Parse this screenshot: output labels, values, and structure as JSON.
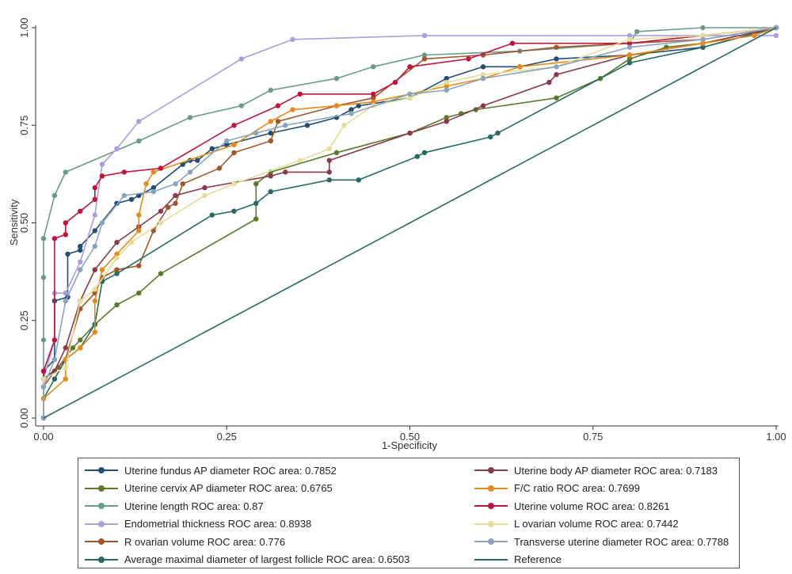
{
  "chart_data": {
    "type": "line",
    "title": "",
    "xlabel": "1-Specificity",
    "ylabel": "Sensitivity",
    "xlim": [
      0,
      1
    ],
    "ylim": [
      0,
      1
    ],
    "xticks": [
      "0.00",
      "0.25",
      "0.50",
      "0.75",
      "1.00"
    ],
    "yticks": [
      "0.00",
      "0.25",
      "0.50",
      "0.75",
      "1.00"
    ],
    "grid": false,
    "legend_position": "bottom",
    "series": [
      {
        "name": "Uterine fundus AP diameter ROC area: 0.7852",
        "color": "#1f4e79",
        "points": [
          [
            0,
            0
          ],
          [
            0,
            0.12
          ],
          [
            0.015,
            0.15
          ],
          [
            0.015,
            0.3
          ],
          [
            0.033,
            0.31
          ],
          [
            0.033,
            0.42
          ],
          [
            0.05,
            0.43
          ],
          [
            0.05,
            0.44
          ],
          [
            0.07,
            0.48
          ],
          [
            0.1,
            0.55
          ],
          [
            0.12,
            0.56
          ],
          [
            0.13,
            0.57
          ],
          [
            0.15,
            0.59
          ],
          [
            0.19,
            0.65
          ],
          [
            0.2,
            0.66
          ],
          [
            0.21,
            0.66
          ],
          [
            0.23,
            0.69
          ],
          [
            0.25,
            0.7
          ],
          [
            0.31,
            0.73
          ],
          [
            0.36,
            0.75
          ],
          [
            0.4,
            0.77
          ],
          [
            0.42,
            0.79
          ],
          [
            0.43,
            0.8
          ],
          [
            0.5,
            0.82
          ],
          [
            0.55,
            0.87
          ],
          [
            0.6,
            0.9
          ],
          [
            0.65,
            0.9
          ],
          [
            0.7,
            0.92
          ],
          [
            0.8,
            0.93
          ],
          [
            0.9,
            0.95
          ],
          [
            1,
            1
          ]
        ]
      },
      {
        "name": "Uterine cervix AP diameter ROC area: 0.6765",
        "color": "#5a7a2a",
        "points": [
          [
            0,
            0
          ],
          [
            0,
            0.1
          ],
          [
            0.02,
            0.13
          ],
          [
            0.04,
            0.18
          ],
          [
            0.05,
            0.2
          ],
          [
            0.07,
            0.24
          ],
          [
            0.1,
            0.29
          ],
          [
            0.13,
            0.32
          ],
          [
            0.16,
            0.37
          ],
          [
            0.29,
            0.51
          ],
          [
            0.29,
            0.6
          ],
          [
            0.31,
            0.63
          ],
          [
            0.4,
            0.68
          ],
          [
            0.5,
            0.73
          ],
          [
            0.55,
            0.77
          ],
          [
            0.57,
            0.78
          ],
          [
            0.59,
            0.79
          ],
          [
            0.7,
            0.82
          ],
          [
            0.76,
            0.87
          ],
          [
            0.8,
            0.92
          ],
          [
            0.85,
            0.95
          ],
          [
            0.9,
            0.96
          ],
          [
            1,
            1
          ]
        ]
      },
      {
        "name": "Uterine length ROC area: 0.87",
        "color": "#6a9a8a",
        "points": [
          [
            0,
            0
          ],
          [
            0,
            0.2
          ],
          [
            0,
            0.36
          ],
          [
            0,
            0.46
          ],
          [
            0.015,
            0.57
          ],
          [
            0.03,
            0.63
          ],
          [
            0.13,
            0.71
          ],
          [
            0.2,
            0.77
          ],
          [
            0.27,
            0.8
          ],
          [
            0.31,
            0.84
          ],
          [
            0.4,
            0.87
          ],
          [
            0.45,
            0.9
          ],
          [
            0.52,
            0.93
          ],
          [
            0.65,
            0.94
          ],
          [
            0.8,
            0.96
          ],
          [
            0.81,
            0.99
          ],
          [
            0.9,
            1
          ],
          [
            1,
            1
          ]
        ]
      },
      {
        "name": "Endometrial thickness ROC area: 0.8938",
        "color": "#a89ee0",
        "points": [
          [
            0,
            0
          ],
          [
            0,
            0.1
          ],
          [
            0.015,
            0.2
          ],
          [
            0.015,
            0.32
          ],
          [
            0.03,
            0.32
          ],
          [
            0.05,
            0.4
          ],
          [
            0.07,
            0.52
          ],
          [
            0.08,
            0.65
          ],
          [
            0.1,
            0.69
          ],
          [
            0.13,
            0.76
          ],
          [
            0.27,
            0.92
          ],
          [
            0.34,
            0.97
          ],
          [
            0.52,
            0.98
          ],
          [
            0.8,
            0.98
          ],
          [
            1,
            0.98
          ]
        ]
      },
      {
        "name": "R ovarian volume ROC area: 0.776",
        "color": "#a3552a",
        "points": [
          [
            0,
            0
          ],
          [
            0,
            0.08
          ],
          [
            0.015,
            0.12
          ],
          [
            0.03,
            0.15
          ],
          [
            0.05,
            0.28
          ],
          [
            0.07,
            0.32
          ],
          [
            0.08,
            0.36
          ],
          [
            0.1,
            0.38
          ],
          [
            0.13,
            0.39
          ],
          [
            0.15,
            0.48
          ],
          [
            0.17,
            0.54
          ],
          [
            0.18,
            0.55
          ],
          [
            0.19,
            0.6
          ],
          [
            0.24,
            0.64
          ],
          [
            0.26,
            0.68
          ],
          [
            0.31,
            0.71
          ],
          [
            0.32,
            0.76
          ],
          [
            0.4,
            0.8
          ],
          [
            0.45,
            0.82
          ],
          [
            0.52,
            0.92
          ],
          [
            0.6,
            0.93
          ],
          [
            0.7,
            0.95
          ],
          [
            0.8,
            0.96
          ],
          [
            0.9,
            0.97
          ],
          [
            1,
            1
          ]
        ]
      },
      {
        "name": "Average maximal diameter of largest follicle ROC area: 0.6503",
        "color": "#236b63",
        "points": [
          [
            0,
            0
          ],
          [
            0,
            0.05
          ],
          [
            0.015,
            0.1
          ],
          [
            0.03,
            0.15
          ],
          [
            0.05,
            0.18
          ],
          [
            0.07,
            0.24
          ],
          [
            0.08,
            0.35
          ],
          [
            0.1,
            0.37
          ],
          [
            0.23,
            0.52
          ],
          [
            0.26,
            0.53
          ],
          [
            0.29,
            0.55
          ],
          [
            0.31,
            0.58
          ],
          [
            0.39,
            0.61
          ],
          [
            0.43,
            0.61
          ],
          [
            0.51,
            0.67
          ],
          [
            0.52,
            0.68
          ],
          [
            0.61,
            0.72
          ],
          [
            0.62,
            0.73
          ],
          [
            0.8,
            0.91
          ],
          [
            0.9,
            0.95
          ],
          [
            1,
            1
          ]
        ]
      },
      {
        "name": "Uterine body AP diameter ROC area: 0.7183",
        "color": "#8b3a4a",
        "points": [
          [
            0,
            0
          ],
          [
            0,
            0.1
          ],
          [
            0.015,
            0.12
          ],
          [
            0.03,
            0.18
          ],
          [
            0.05,
            0.3
          ],
          [
            0.07,
            0.38
          ],
          [
            0.1,
            0.45
          ],
          [
            0.13,
            0.49
          ],
          [
            0.16,
            0.53
          ],
          [
            0.18,
            0.57
          ],
          [
            0.22,
            0.59
          ],
          [
            0.31,
            0.62
          ],
          [
            0.33,
            0.63
          ],
          [
            0.39,
            0.63
          ],
          [
            0.39,
            0.66
          ],
          [
            0.5,
            0.73
          ],
          [
            0.55,
            0.76
          ],
          [
            0.6,
            0.8
          ],
          [
            0.69,
            0.86
          ],
          [
            0.7,
            0.88
          ],
          [
            0.8,
            0.93
          ],
          [
            0.9,
            0.96
          ],
          [
            1,
            1
          ]
        ]
      },
      {
        "name": "F/C ratio ROC area: 0.7699",
        "color": "#e88a17",
        "points": [
          [
            0,
            0
          ],
          [
            0,
            0.05
          ],
          [
            0.03,
            0.1
          ],
          [
            0.03,
            0.15
          ],
          [
            0.05,
            0.18
          ],
          [
            0.07,
            0.22
          ],
          [
            0.07,
            0.3
          ],
          [
            0.08,
            0.38
          ],
          [
            0.1,
            0.42
          ],
          [
            0.13,
            0.48
          ],
          [
            0.13,
            0.52
          ],
          [
            0.14,
            0.6
          ],
          [
            0.15,
            0.63
          ],
          [
            0.26,
            0.7
          ],
          [
            0.31,
            0.76
          ],
          [
            0.34,
            0.79
          ],
          [
            0.4,
            0.8
          ],
          [
            0.45,
            0.81
          ],
          [
            0.5,
            0.83
          ],
          [
            0.55,
            0.85
          ],
          [
            0.6,
            0.87
          ],
          [
            0.65,
            0.9
          ],
          [
            0.8,
            0.93
          ],
          [
            0.9,
            0.96
          ],
          [
            0.97,
            0.98
          ],
          [
            1,
            1
          ]
        ]
      },
      {
        "name": "Uterine volume ROC area: 0.8261",
        "color": "#c0143c",
        "points": [
          [
            0,
            0
          ],
          [
            0,
            0.12
          ],
          [
            0.015,
            0.2
          ],
          [
            0.015,
            0.46
          ],
          [
            0.03,
            0.47
          ],
          [
            0.03,
            0.5
          ],
          [
            0.05,
            0.53
          ],
          [
            0.07,
            0.56
          ],
          [
            0.07,
            0.59
          ],
          [
            0.08,
            0.62
          ],
          [
            0.11,
            0.63
          ],
          [
            0.16,
            0.64
          ],
          [
            0.26,
            0.75
          ],
          [
            0.32,
            0.8
          ],
          [
            0.35,
            0.83
          ],
          [
            0.45,
            0.83
          ],
          [
            0.48,
            0.86
          ],
          [
            0.5,
            0.9
          ],
          [
            0.58,
            0.92
          ],
          [
            0.64,
            0.96
          ],
          [
            0.8,
            0.96
          ],
          [
            0.9,
            0.98
          ],
          [
            1,
            1
          ]
        ]
      },
      {
        "name": "L ovarian volume ROC area: 0.7442",
        "color": "#e6dc9a",
        "points": [
          [
            0,
            0
          ],
          [
            0,
            0.1
          ],
          [
            0.03,
            0.13
          ],
          [
            0.05,
            0.3
          ],
          [
            0.07,
            0.33
          ],
          [
            0.1,
            0.41
          ],
          [
            0.12,
            0.45
          ],
          [
            0.16,
            0.5
          ],
          [
            0.22,
            0.57
          ],
          [
            0.26,
            0.6
          ],
          [
            0.35,
            0.66
          ],
          [
            0.39,
            0.69
          ],
          [
            0.41,
            0.75
          ],
          [
            0.45,
            0.8
          ],
          [
            0.5,
            0.82
          ],
          [
            0.55,
            0.86
          ],
          [
            0.6,
            0.88
          ],
          [
            0.7,
            0.9
          ],
          [
            0.8,
            0.97
          ],
          [
            0.9,
            0.98
          ],
          [
            1,
            1
          ]
        ]
      },
      {
        "name": "Transverse uterine diameter ROC area: 0.7788",
        "color": "#8aa4bf",
        "points": [
          [
            0,
            0
          ],
          [
            0,
            0.08
          ],
          [
            0.015,
            0.15
          ],
          [
            0.03,
            0.3
          ],
          [
            0.05,
            0.38
          ],
          [
            0.07,
            0.44
          ],
          [
            0.08,
            0.5
          ],
          [
            0.11,
            0.57
          ],
          [
            0.15,
            0.58
          ],
          [
            0.18,
            0.6
          ],
          [
            0.2,
            0.63
          ],
          [
            0.25,
            0.71
          ],
          [
            0.29,
            0.73
          ],
          [
            0.33,
            0.75
          ],
          [
            0.42,
            0.78
          ],
          [
            0.5,
            0.83
          ],
          [
            0.55,
            0.84
          ],
          [
            0.6,
            0.87
          ],
          [
            0.7,
            0.9
          ],
          [
            0.8,
            0.95
          ],
          [
            0.9,
            0.97
          ],
          [
            1,
            1
          ]
        ]
      },
      {
        "name": "Reference",
        "color": "#236b63",
        "reference": true,
        "points": [
          [
            0,
            0
          ],
          [
            1,
            1
          ]
        ]
      }
    ]
  }
}
